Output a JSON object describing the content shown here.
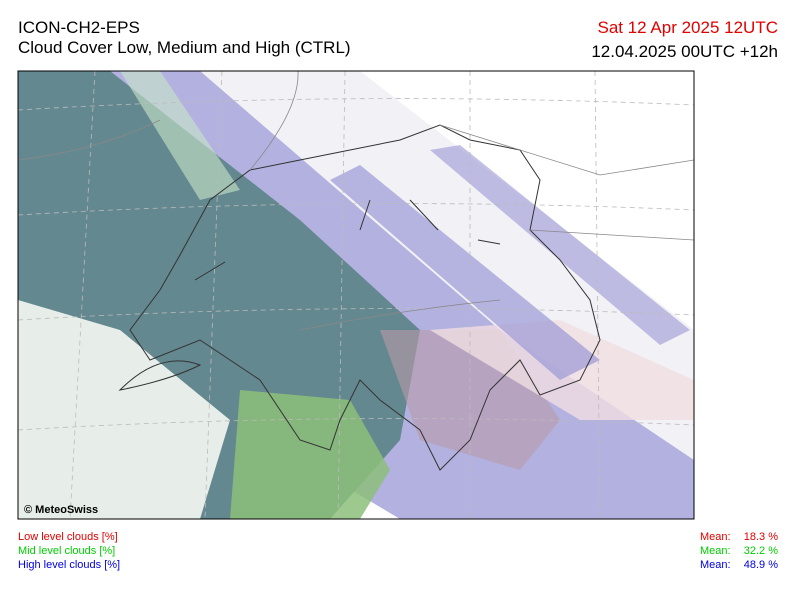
{
  "header": {
    "title": "ICON-CH2-EPS",
    "subtitle": "Cloud Cover Low, Medium and High (CTRL)",
    "valid_time": "Sat 12 Apr 2025 12UTC",
    "run_time": "12.04.2025 00UTC +12h"
  },
  "map": {
    "credit": "© MeteoSwiss"
  },
  "legend": [
    {
      "label": "Low level clouds [%]",
      "mean_label": "Mean:",
      "mean_value": "18.3 %"
    },
    {
      "label": "Mid level clouds [%]",
      "mean_label": "Mean:",
      "mean_value": "32.2 %"
    },
    {
      "label": "High level clouds [%]",
      "mean_label": "Mean:",
      "mean_value": "48.9 %"
    }
  ]
}
